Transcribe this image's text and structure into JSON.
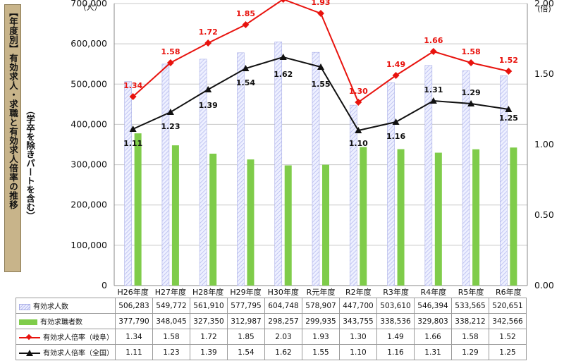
{
  "side_title": "【年度別】有効求人・求職と有効求人倍率の推移",
  "side_subtitle": "（学卒を除きパートを含む）",
  "chart_data": {
    "type": "bar",
    "categories": [
      "H26年度",
      "H27年度",
      "H28年度",
      "H29年度",
      "H30年度",
      "R元年度",
      "R2年度",
      "R3年度",
      "R4年度",
      "R5年度",
      "R6年度"
    ],
    "left_axis": {
      "unit": "（人）",
      "ticks": [
        "0",
        "100,000",
        "200,000",
        "300,000",
        "400,000",
        "500,000",
        "600,000",
        "700,000"
      ],
      "ylim": [
        0,
        700000
      ]
    },
    "right_axis": {
      "unit": "(倍)",
      "ticks": [
        "0.00",
        "0.50",
        "1.00",
        "1.50",
        "2.00"
      ],
      "ylim": [
        0,
        2.0
      ]
    },
    "series": [
      {
        "name": "有効求人数",
        "kind": "bar",
        "axis": "left",
        "color": "#b9bdf0",
        "values": [
          506283,
          549772,
          561910,
          577795,
          604748,
          578907,
          447700,
          503610,
          546394,
          533565,
          520651
        ],
        "display": [
          "506,283",
          "549,772",
          "561,910",
          "577,795",
          "604,748",
          "578,907",
          "447,700",
          "503,610",
          "546,394",
          "533,565",
          "520,651"
        ]
      },
      {
        "name": "有効求職者数",
        "kind": "bar",
        "axis": "left",
        "color": "#7fcc4a",
        "values": [
          377790,
          348045,
          327350,
          312987,
          298257,
          299935,
          343755,
          338536,
          329803,
          338212,
          342566
        ],
        "display": [
          "377,790",
          "348,045",
          "327,350",
          "312,987",
          "298,257",
          "299,935",
          "343,755",
          "338,536",
          "329,803",
          "338,212",
          "342,566"
        ]
      },
      {
        "name": "有効求人倍率（岐阜）",
        "kind": "line",
        "axis": "right",
        "color": "#e8130e",
        "marker": "diamond",
        "values": [
          1.34,
          1.58,
          1.72,
          1.85,
          2.03,
          1.93,
          1.3,
          1.49,
          1.66,
          1.58,
          1.52
        ],
        "display": [
          "1.34",
          "1.58",
          "1.72",
          "1.85",
          "2.03",
          "1.93",
          "1.30",
          "1.49",
          "1.66",
          "1.58",
          "1.52"
        ]
      },
      {
        "name": "有効求人倍率（全国）",
        "kind": "line",
        "axis": "right",
        "color": "#111111",
        "marker": "triangle",
        "values": [
          1.11,
          1.23,
          1.39,
          1.54,
          1.62,
          1.55,
          1.1,
          1.16,
          1.31,
          1.29,
          1.25
        ],
        "display": [
          "1.11",
          "1.23",
          "1.39",
          "1.54",
          "1.62",
          "1.55",
          "1.10",
          "1.16",
          "1.31",
          "1.29",
          "1.25"
        ]
      }
    ],
    "grid": "horizontal",
    "legend": "data-table"
  }
}
